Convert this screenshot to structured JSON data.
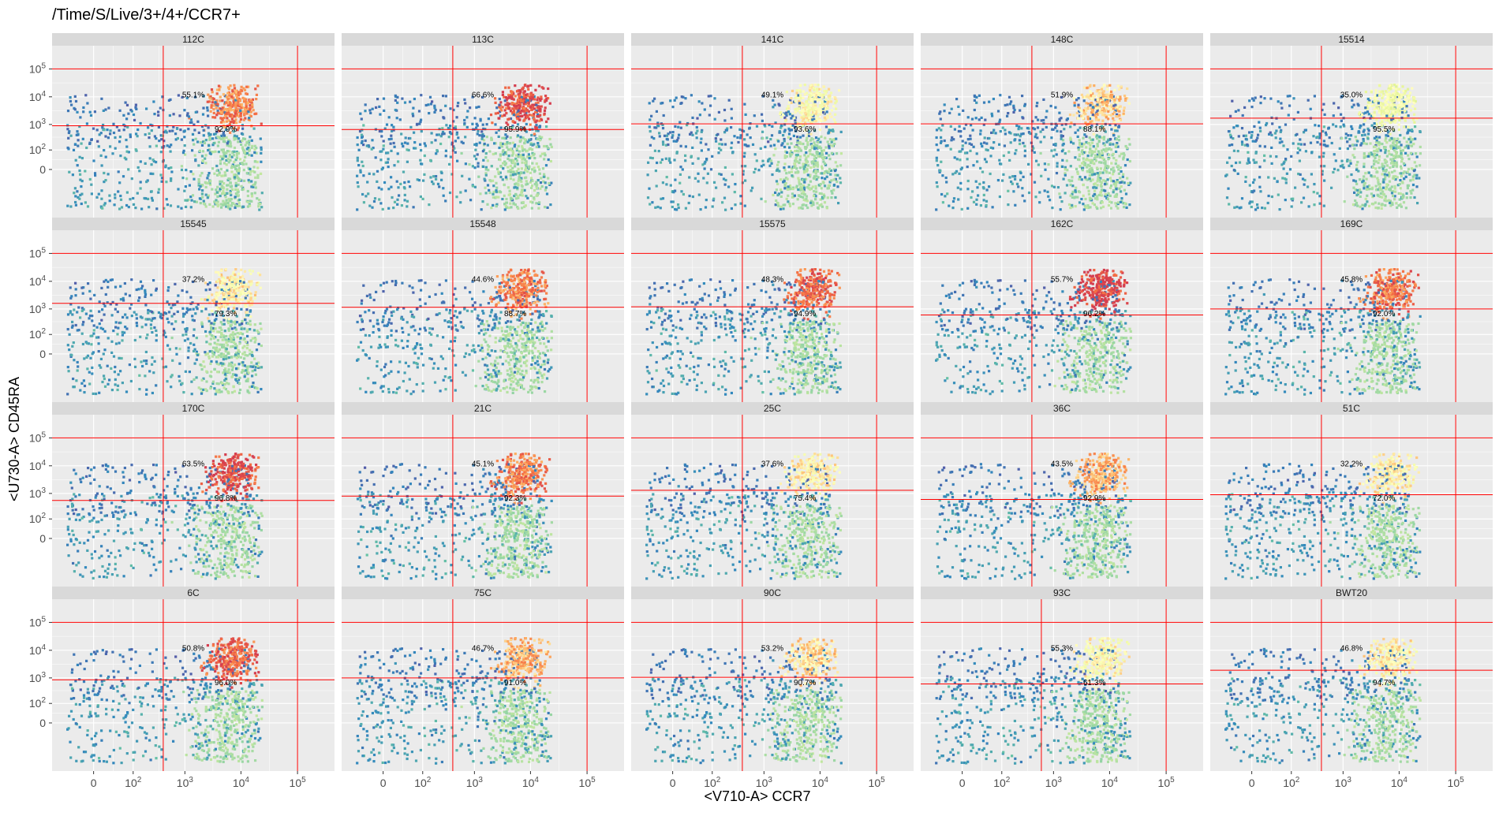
{
  "chart_data": {
    "type": "heatmap",
    "title": "/Time/S/Live/3+/4+/CCR7+",
    "xlabel": "<V710-A> CCR7",
    "ylabel": "<U730-A> CD45RA",
    "x_scale": "biexponential",
    "y_scale": "biexponential",
    "xticks": [
      {
        "value": 0,
        "label": "0"
      },
      {
        "value": 100,
        "base": "10",
        "exp": "2"
      },
      {
        "value": 1000,
        "base": "10",
        "exp": "3"
      },
      {
        "value": 10000,
        "base": "10",
        "exp": "4"
      },
      {
        "value": 100000,
        "base": "10",
        "exp": "5"
      }
    ],
    "yticks": [
      {
        "value": 0,
        "label": "0"
      },
      {
        "value": 100,
        "base": "10",
        "exp": "2"
      },
      {
        "value": 1000,
        "base": "10",
        "exp": "3"
      },
      {
        "value": 10000,
        "base": "10",
        "exp": "4"
      },
      {
        "value": 100000,
        "base": "10",
        "exp": "5"
      }
    ],
    "colors": {
      "gate_line": "#ff0000",
      "panel_bg": "#ebebeb",
      "strip_bg": "#d9d9d9",
      "density_low": "#5e4fa2",
      "density_mid": "#ffffbf",
      "density_high": "#d53e4f"
    },
    "panels": [
      {
        "name": "112C",
        "upper": "55.1%",
        "lower": "92.9%",
        "gate_x": 400,
        "gate_y": 900,
        "hot": 0.75
      },
      {
        "name": "113C",
        "upper": "66.6%",
        "lower": "95.9%",
        "gate_x": 400,
        "gate_y": 650,
        "hot": 0.95
      },
      {
        "name": "141C",
        "upper": "49.1%",
        "lower": "93.6%",
        "gate_x": 400,
        "gate_y": 1050,
        "hot": 0.3
      },
      {
        "name": "148C",
        "upper": "51.9%",
        "lower": "88.1%",
        "gate_x": 400,
        "gate_y": 1050,
        "hot": 0.5
      },
      {
        "name": "15514",
        "upper": "35.0%",
        "lower": "95.5%",
        "gate_x": 400,
        "gate_y": 1700,
        "hot": 0.15
      },
      {
        "name": "15545",
        "upper": "37.2%",
        "lower": "79.3%",
        "gate_x": 400,
        "gate_y": 1600,
        "hot": 0.35
      },
      {
        "name": "15548",
        "upper": "44.6%",
        "lower": "88.7%",
        "gate_x": 400,
        "gate_y": 1150,
        "hot": 0.75
      },
      {
        "name": "15575",
        "upper": "48.3%",
        "lower": "94.9%",
        "gate_x": 400,
        "gate_y": 1200,
        "hot": 0.85
      },
      {
        "name": "162C",
        "upper": "55.7%",
        "lower": "96.2%",
        "gate_x": 400,
        "gate_y": 600,
        "hot": 1.0
      },
      {
        "name": "169C",
        "upper": "45.8%",
        "lower": "92.0%",
        "gate_x": 400,
        "gate_y": 1000,
        "hot": 0.8
      },
      {
        "name": "170C",
        "upper": "63.5%",
        "lower": "96.8%",
        "gate_x": 400,
        "gate_y": 550,
        "hot": 0.95
      },
      {
        "name": "21C",
        "upper": "45.1%",
        "lower": "92.3%",
        "gate_x": 400,
        "gate_y": 800,
        "hot": 0.75
      },
      {
        "name": "25C",
        "upper": "37.6%",
        "lower": "75.4%",
        "gate_x": 400,
        "gate_y": 1300,
        "hot": 0.35
      },
      {
        "name": "36C",
        "upper": "43.5%",
        "lower": "92.9%",
        "gate_x": 400,
        "gate_y": 600,
        "hot": 0.6
      },
      {
        "name": "51C",
        "upper": "32.2%",
        "lower": "72.0%",
        "gate_x": 400,
        "gate_y": 900,
        "hot": 0.35
      },
      {
        "name": "6C",
        "upper": "50.8%",
        "lower": "96.0%",
        "gate_x": 400,
        "gate_y": 850,
        "hot": 0.85
      },
      {
        "name": "75C",
        "upper": "46.7%",
        "lower": "91.0%",
        "gate_x": 400,
        "gate_y": 1000,
        "hot": 0.6
      },
      {
        "name": "90C",
        "upper": "53.2%",
        "lower": "90.7%",
        "gate_x": 400,
        "gate_y": 1050,
        "hot": 0.45
      },
      {
        "name": "93C",
        "upper": "55.3%",
        "lower": "61.3%",
        "gate_x": 600,
        "gate_y": 600,
        "hot": 0.3
      },
      {
        "name": "BWT20",
        "upper": "46.8%",
        "lower": "94.7%",
        "gate_x": 400,
        "gate_y": 1900,
        "hot": 0.35
      }
    ],
    "gate_x_high": 100000,
    "gate_y_high": 100000,
    "grid": true,
    "legend": "none"
  }
}
